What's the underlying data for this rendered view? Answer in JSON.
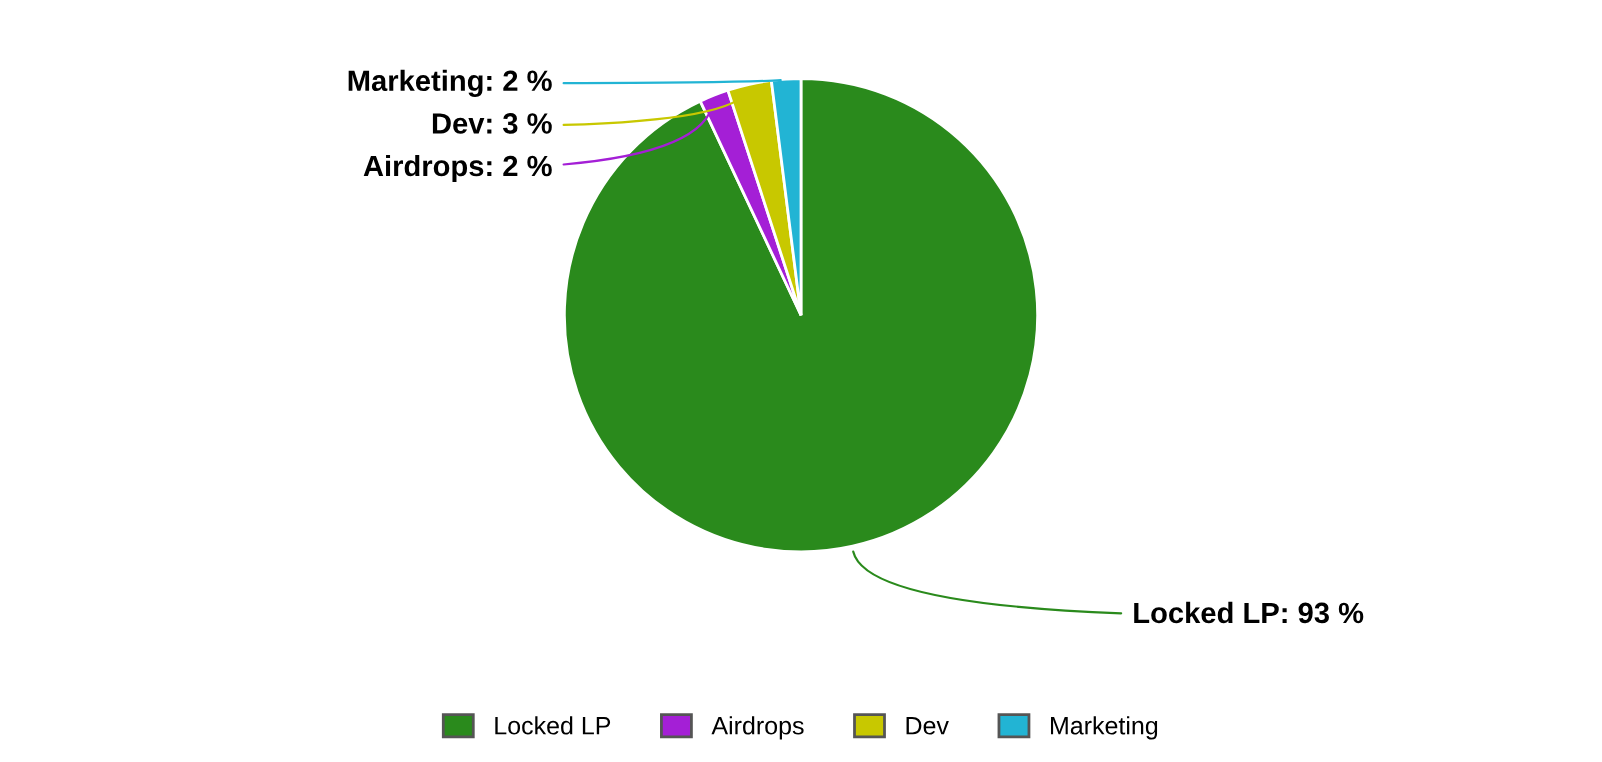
{
  "chart_data": {
    "type": "pie",
    "categories": [
      "Locked LP",
      "Airdrops",
      "Dev",
      "Marketing"
    ],
    "values": [
      93,
      2,
      3,
      2
    ],
    "colors": [
      "#2a8a1c",
      "#a41fd6",
      "#c8c800",
      "#22b4d4"
    ],
    "value_labels": [
      "Locked LP: 93 %",
      "Airdrops: 2 %",
      "Dev: 3 %",
      "Marketing: 2 %"
    ],
    "legend": "bottom"
  }
}
